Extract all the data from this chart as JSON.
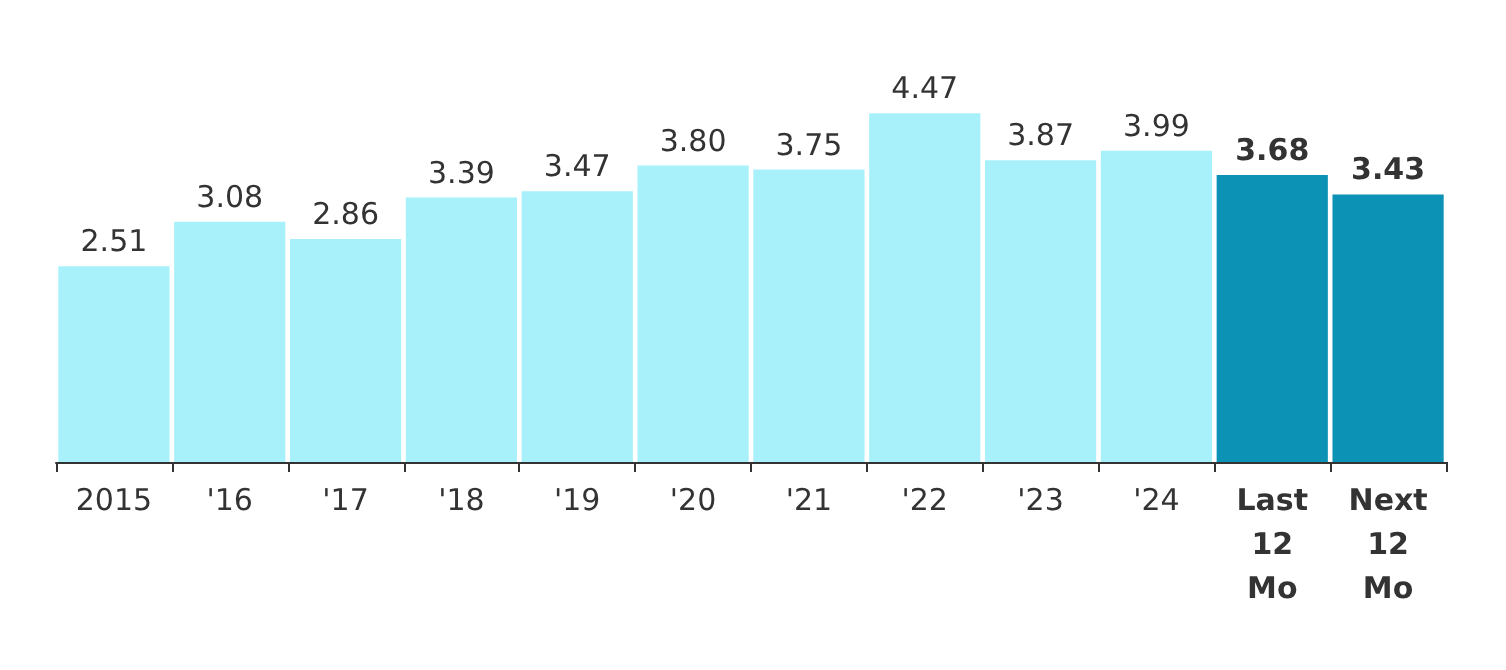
{
  "chart_data": {
    "type": "bar",
    "categories": [
      "2015",
      "'16",
      "'17",
      "'18",
      "'19",
      "'20",
      "'21",
      "'22",
      "'23",
      "'24",
      "Last 12 Mo",
      "Next 12 Mo"
    ],
    "series": [
      {
        "color": "#a8f1fb",
        "values": [
          2.51,
          3.08,
          2.86,
          3.39,
          3.47,
          3.8,
          3.75,
          4.47,
          3.87,
          3.99,
          null,
          null
        ],
        "value_labels": [
          "2.51",
          "3.08",
          "2.86",
          "3.39",
          "3.47",
          "3.80",
          "3.75",
          "4.47",
          "3.87",
          "3.99",
          null,
          null
        ]
      },
      {
        "color": "#0b92b5",
        "values": [
          null,
          null,
          null,
          null,
          null,
          null,
          null,
          null,
          null,
          null,
          3.68,
          3.43
        ],
        "value_labels": [
          null,
          null,
          null,
          null,
          null,
          null,
          null,
          null,
          null,
          null,
          "3.68",
          "3.43"
        ]
      }
    ],
    "grid": false
  }
}
